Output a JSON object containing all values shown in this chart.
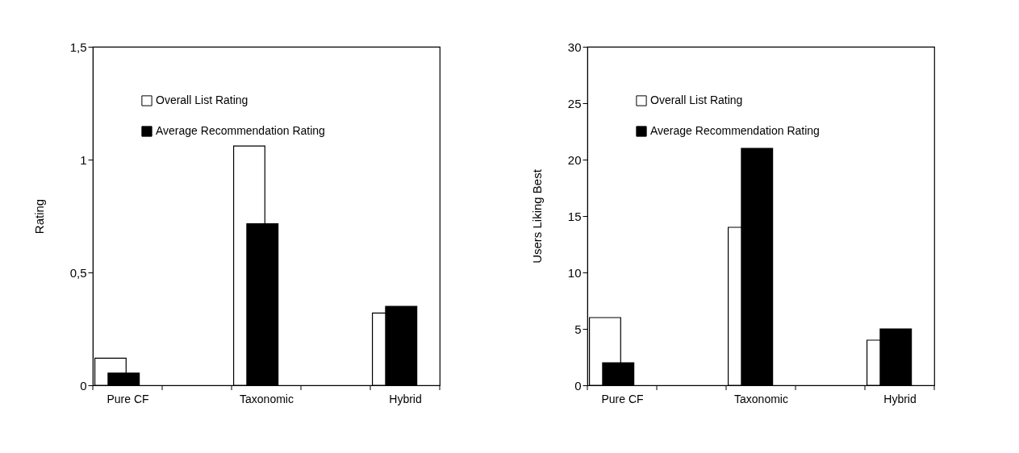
{
  "chart_data": [
    {
      "type": "bar",
      "ylabel": "Rating",
      "categories": [
        "Pure CF",
        null,
        "Taxonomic",
        null,
        "Hybrid"
      ],
      "series": [
        {
          "name": "Overall List Rating",
          "color": "#ffffff",
          "values": [
            0.12,
            null,
            1.06,
            null,
            0.32
          ]
        },
        {
          "name": "Average Recommendation Rating",
          "color": "#000000",
          "values": [
            0.054,
            null,
            0.716,
            null,
            0.35
          ]
        }
      ],
      "ylim": [
        0,
        1.5
      ],
      "yticks": [
        0,
        {
          "value": 0.5,
          "label": "0,5"
        },
        1,
        {
          "value": 1.5,
          "label": "1,5"
        }
      ],
      "grid": false,
      "legend": "top left"
    },
    {
      "type": "bar",
      "ylabel": "Users Liking Best",
      "categories": [
        "Pure CF",
        null,
        "Taxonomic",
        null,
        "Hybrid"
      ],
      "series": [
        {
          "name": "Overall List Rating",
          "color": "#ffffff",
          "values": [
            6,
            null,
            14,
            null,
            4
          ]
        },
        {
          "name": "Average Recommendation Rating",
          "color": "#000000",
          "values": [
            2,
            null,
            21,
            null,
            5
          ]
        }
      ],
      "ylim": [
        0,
        30
      ],
      "yticks": [
        0,
        5,
        10,
        15,
        20,
        25,
        30
      ],
      "grid": false,
      "legend": "top left"
    }
  ]
}
